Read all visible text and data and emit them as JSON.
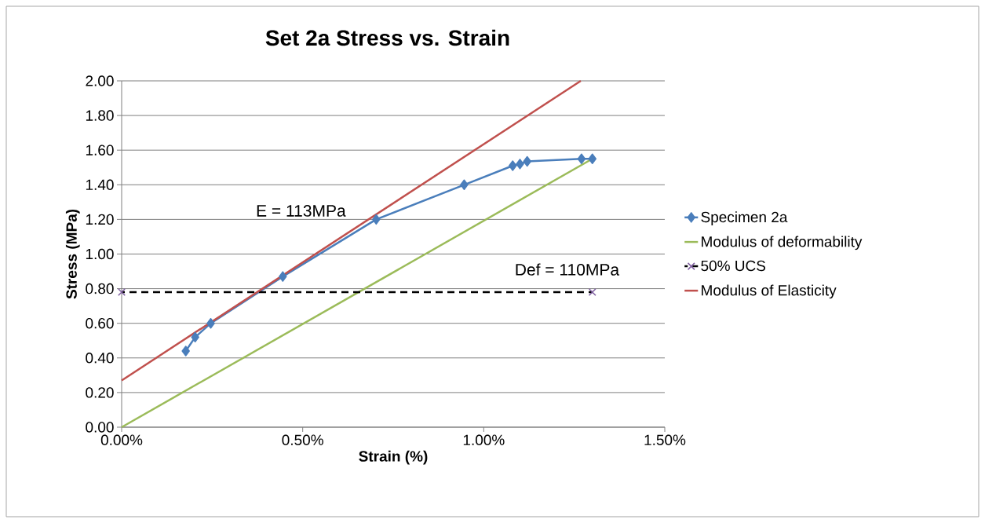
{
  "chart_data": {
    "type": "line",
    "title": "Set 2a Stress vs. Strain",
    "xlabel": "Strain (%)",
    "ylabel": "Stress (MPa)",
    "xlim": [
      0,
      1.5
    ],
    "ylim": [
      0,
      2
    ],
    "xticks": [
      {
        "value": 0,
        "label": "0.00%"
      },
      {
        "value": 0.5,
        "label": "0.50%"
      },
      {
        "value": 1,
        "label": "1.00%"
      },
      {
        "value": 1.5,
        "label": "1.50%"
      }
    ],
    "yticks": [
      {
        "value": 0,
        "label": "0.00"
      },
      {
        "value": 0.2,
        "label": "0.20"
      },
      {
        "value": 0.4,
        "label": "0.40"
      },
      {
        "value": 0.6,
        "label": "0.60"
      },
      {
        "value": 0.8,
        "label": "0.80"
      },
      {
        "value": 1,
        "label": "1.00"
      },
      {
        "value": 1.2,
        "label": "1.20"
      },
      {
        "value": 1.4,
        "label": "1.40"
      },
      {
        "value": 1.6,
        "label": "1.60"
      },
      {
        "value": 1.8,
        "label": "1.80"
      },
      {
        "value": 2,
        "label": "2.00"
      }
    ],
    "grid": "y",
    "legend": "right",
    "series": [
      {
        "name": "Specimen 2a",
        "color": "#4a7ebb",
        "marker": "diamond",
        "line_style": "solid",
        "x": [
          0.177,
          0.203,
          0.246,
          0.445,
          0.703,
          0.946,
          1.08,
          1.1,
          1.12,
          1.27,
          1.3
        ],
        "values": [
          0.44,
          0.52,
          0.6,
          0.87,
          1.2,
          1.4,
          1.51,
          1.52,
          1.535,
          1.55,
          1.55
        ]
      },
      {
        "name": "Modulus of deformability",
        "color": "#9bbb59",
        "marker": "none",
        "line_style": "solid",
        "x": [
          0,
          1.3
        ],
        "values": [
          0,
          1.55
        ]
      },
      {
        "name": "50% UCS",
        "color": "#000000",
        "marker": "cross",
        "line_style": "dashed",
        "x": [
          0,
          1.3
        ],
        "values": [
          0.78,
          0.78
        ]
      },
      {
        "name": "Modulus of Elasticity",
        "color": "#c0504d",
        "marker": "none",
        "line_style": "solid",
        "x": [
          0,
          1.268
        ],
        "values": [
          0.27,
          2.0
        ]
      }
    ],
    "annotations": [
      "E = 113MPa",
      "Def = 110MPa"
    ]
  }
}
